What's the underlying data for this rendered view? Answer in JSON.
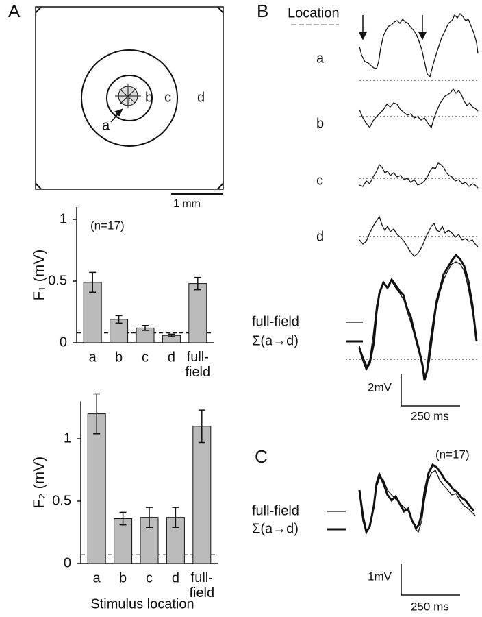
{
  "panel_a": {
    "label": "A",
    "regions": [
      "a",
      "b",
      "c",
      "d"
    ],
    "scale_bar": "1 mm"
  },
  "chart_data": [
    {
      "type": "bar",
      "ylabel": "F₁ (mV)",
      "annotation": "(n=17)",
      "categories": [
        "a",
        "b",
        "c",
        "d",
        "full-field"
      ],
      "values": [
        0.49,
        0.19,
        0.12,
        0.06,
        0.48
      ],
      "errors": [
        0.08,
        0.03,
        0.02,
        0.01,
        0.05
      ],
      "color": "#bbbbbb",
      "reference_line": 0.08,
      "ylim": [
        0,
        1.1
      ],
      "yticks": [
        {
          "value": 0,
          "label": "0"
        },
        0.5,
        {
          "value": 1,
          "label": "1"
        }
      ]
    },
    {
      "type": "bar",
      "ylabel": "F₂ (mV)",
      "xlabel": "Stimulus location",
      "categories": [
        "a",
        "b",
        "c",
        "d",
        "full-field"
      ],
      "values": [
        1.2,
        0.36,
        0.37,
        0.37,
        1.1
      ],
      "errors": [
        0.16,
        0.05,
        0.08,
        0.08,
        0.13
      ],
      "color": "#bbbbbb",
      "reference_line": 0.07,
      "ylim": [
        0,
        1.3
      ],
      "yticks": [
        {
          "value": 0,
          "label": "0"
        },
        0.5,
        {
          "value": 1,
          "label": "1"
        }
      ]
    }
  ],
  "panel_b": {
    "label": "B",
    "header": "Location",
    "traces": [
      "a",
      "b",
      "c",
      "d"
    ],
    "legend": [
      "full-field",
      "Σ(a→d)"
    ],
    "scale_y": "2mV",
    "scale_x": "250 ms"
  },
  "panel_c": {
    "label": "C",
    "note": "(n=17)",
    "legend": [
      "full-field",
      "Σ(a→d)"
    ],
    "scale_y": "1mV",
    "scale_x": "250 ms"
  }
}
